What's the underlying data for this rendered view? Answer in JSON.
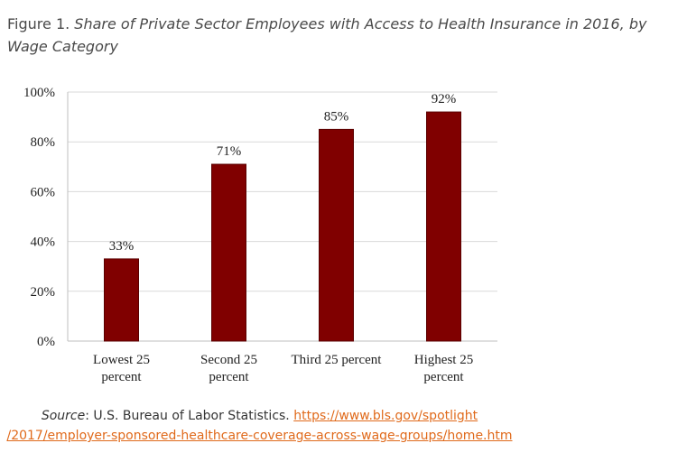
{
  "caption": {
    "prefix": "Figure 1.",
    "title": "Share of Private Sector Employees with Access to Health Insurance in 2016, by Wage Category"
  },
  "chart_data": {
    "type": "bar",
    "categories": [
      [
        "Lowest 25",
        "percent"
      ],
      [
        "Second 25",
        "percent"
      ],
      [
        "Third 25 percent"
      ],
      [
        "Highest 25",
        "percent"
      ]
    ],
    "values": [
      33,
      71,
      85,
      92
    ],
    "data_labels": [
      "33%",
      "71%",
      "85%",
      "92%"
    ],
    "yticks": [
      "0%",
      "20%",
      "40%",
      "60%",
      "80%",
      "100%"
    ],
    "ylim": [
      0,
      100
    ],
    "grid": true,
    "bar_color": "#800000",
    "bar_border": "#5a0000"
  },
  "source": {
    "label": "Source",
    "text": ": U.S. Bureau of Labor Statistics. ",
    "link_line1": "https://www.bls.gov/spotlight",
    "link_line2": "/2017/employer-sponsored-healthcare-coverage-across-wage-groups/home.htm"
  }
}
